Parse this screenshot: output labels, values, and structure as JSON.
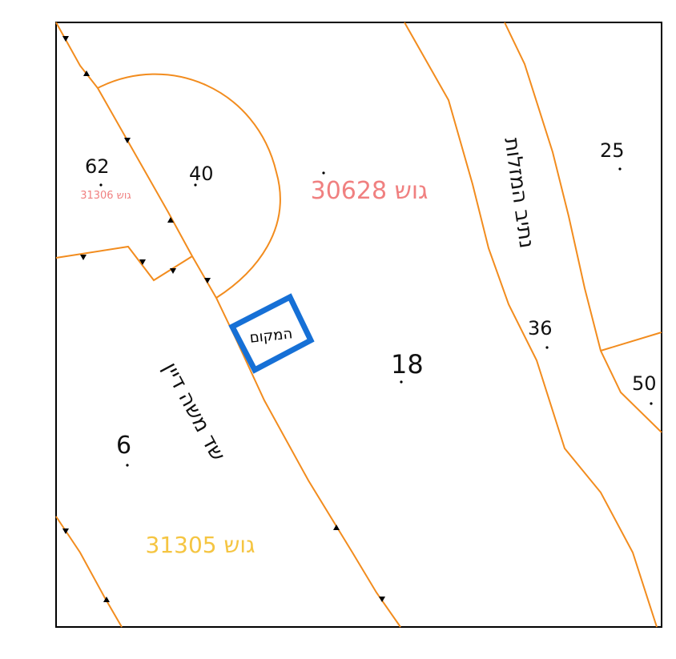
{
  "parcels": {
    "p62": "62",
    "p40": "40",
    "p25": "25",
    "p36": "36",
    "p18": "18",
    "p50": "50",
    "p6": "6"
  },
  "blocks": {
    "block_30628": "גוש 30628",
    "block_31306": "גוש 31306",
    "block_31305": "גוש 31305"
  },
  "streets": {
    "hamelacha": "נתיב המזלות",
    "moshe_dayan": "שד משה דיין"
  },
  "site": {
    "label": "המקום"
  },
  "colors": {
    "boundary": "#f28c1e",
    "frame": "#000000",
    "site_marker": "#1670d6",
    "block_red": "#f08080",
    "block_yellow": "#f5c542"
  }
}
